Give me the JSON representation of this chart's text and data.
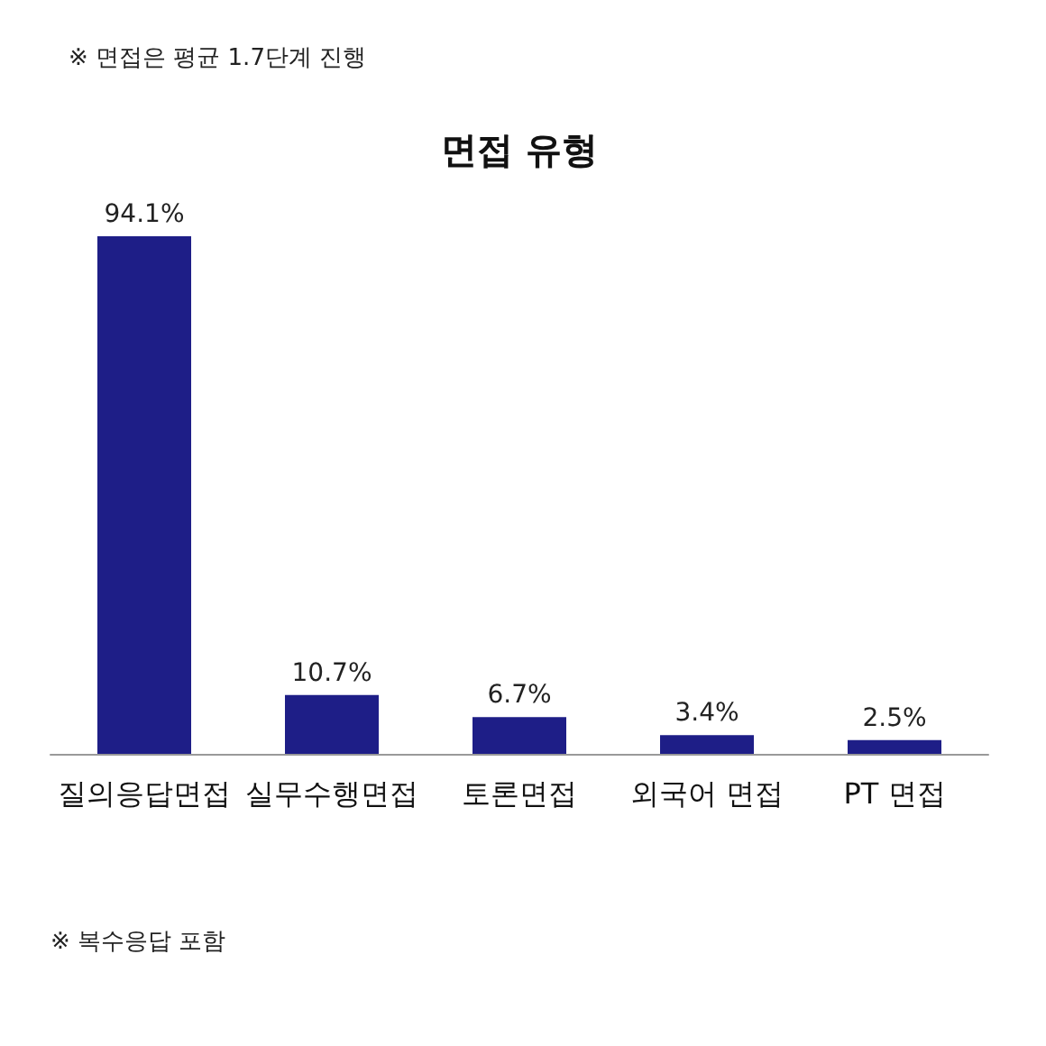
{
  "chart_data": {
    "type": "bar",
    "title": "면접 유형",
    "categories": [
      "질의응답면접",
      "실무수행면접",
      "토론면접",
      "외국어 면접",
      "PT 면접"
    ],
    "values": [
      94.1,
      10.7,
      6.7,
      3.4,
      2.5
    ],
    "value_labels": [
      "94.1%",
      "10.7%",
      "6.7%",
      "3.4%",
      "2.5%"
    ],
    "color": "#1e1e87",
    "annotations": [
      "※ 면접은 평균 1.7단계 진행",
      "※ 복수응답 포함"
    ]
  }
}
